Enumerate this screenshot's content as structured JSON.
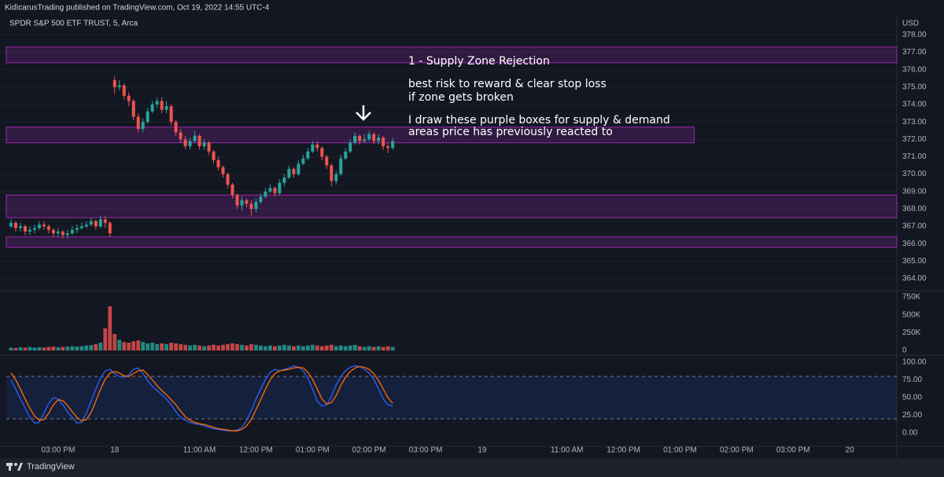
{
  "header": {
    "publish": "KidIcarusTrading published on TradingView.com, Oct 19, 2022 14:55 UTC-4",
    "symbol": "SPDR S&P 500 ETF TRUST, 5, Arca",
    "currency": "USD"
  },
  "annotations": [
    "1 - Supply Zone Rejection",
    "best risk to reward & clear stop loss",
    "if zone gets broken",
    "I draw these purple boxes for supply & demand",
    "areas price has previously reacted to"
  ],
  "footer": {
    "brand": "TradingView"
  },
  "chart_data": [
    {
      "type": "candlestick",
      "open": [
        367.0,
        367.2,
        366.9,
        367.0,
        366.7,
        366.8,
        366.9,
        367.1,
        367.0,
        366.8,
        366.6,
        366.7,
        366.5,
        366.6,
        366.8,
        366.9,
        367.0,
        367.1,
        367.3,
        367.0,
        367.4,
        367.2,
        375.4,
        375.0,
        375.1,
        374.5,
        374.2,
        373.3,
        372.6,
        373.0,
        373.6,
        374.0,
        374.2,
        373.7,
        373.9,
        373.0,
        372.4,
        372.0,
        371.6,
        371.9,
        372.2,
        371.6,
        371.8,
        371.3,
        370.8,
        370.4,
        370.0,
        369.4,
        368.8,
        368.2,
        368.5,
        368.3,
        368.0,
        368.4,
        368.7,
        369.0,
        369.2,
        368.9,
        369.5,
        369.8,
        370.3,
        370.0,
        370.6,
        370.9,
        371.3,
        371.7,
        371.5,
        371.0,
        370.5,
        369.6,
        370.0,
        370.9,
        371.3,
        371.8,
        372.2,
        371.9,
        372.0,
        372.3,
        371.9,
        372.1,
        371.6,
        371.5
      ],
      "high": [
        367.4,
        367.3,
        367.2,
        367.1,
        367.0,
        367.1,
        367.3,
        367.3,
        367.1,
        366.9,
        366.9,
        366.8,
        366.8,
        367.0,
        367.1,
        367.2,
        367.3,
        367.5,
        367.4,
        367.6,
        367.6,
        367.3,
        375.6,
        375.4,
        375.2,
        374.7,
        374.3,
        373.5,
        373.2,
        373.8,
        374.2,
        374.4,
        374.4,
        374.2,
        374.0,
        373.1,
        372.6,
        372.2,
        372.1,
        372.5,
        372.3,
        372.0,
        371.9,
        371.4,
        371.0,
        370.5,
        370.1,
        369.5,
        368.9,
        368.7,
        368.6,
        368.5,
        368.6,
        368.9,
        369.2,
        369.4,
        369.3,
        369.7,
        370.0,
        370.5,
        370.4,
        370.8,
        371.1,
        371.5,
        371.9,
        371.9,
        371.6,
        371.1,
        370.6,
        370.2,
        371.1,
        371.5,
        372.0,
        372.4,
        372.3,
        372.3,
        372.5,
        372.4,
        372.3,
        372.2,
        371.8,
        372.1
      ],
      "low": [
        366.9,
        366.7,
        366.7,
        366.5,
        366.5,
        366.6,
        366.8,
        366.8,
        366.6,
        366.4,
        366.4,
        366.3,
        366.3,
        366.5,
        366.6,
        366.8,
        366.9,
        367.0,
        366.8,
        366.9,
        366.9,
        366.4,
        374.6,
        374.8,
        374.3,
        373.9,
        373.1,
        372.4,
        372.4,
        372.9,
        373.5,
        373.8,
        373.5,
        373.5,
        372.8,
        372.2,
        371.8,
        371.4,
        371.4,
        371.8,
        371.4,
        371.4,
        371.1,
        370.6,
        370.2,
        369.8,
        369.2,
        368.6,
        368.0,
        367.9,
        368.1,
        367.6,
        367.8,
        368.3,
        368.6,
        368.9,
        368.7,
        368.8,
        369.3,
        369.7,
        369.8,
        369.9,
        370.5,
        370.8,
        371.2,
        371.3,
        370.8,
        370.3,
        369.3,
        369.4,
        369.9,
        370.8,
        371.2,
        371.7,
        371.7,
        371.8,
        371.9,
        371.7,
        371.7,
        371.4,
        371.2,
        371.4
      ],
      "close": [
        367.2,
        366.9,
        367.0,
        366.7,
        366.8,
        366.9,
        367.1,
        367.0,
        366.8,
        366.6,
        366.7,
        366.5,
        366.6,
        366.8,
        366.9,
        367.0,
        367.1,
        367.3,
        367.0,
        367.4,
        367.2,
        366.6,
        375.0,
        375.1,
        374.5,
        374.2,
        373.3,
        372.6,
        373.0,
        373.6,
        374.0,
        374.2,
        373.7,
        373.9,
        373.0,
        372.4,
        372.0,
        371.6,
        371.9,
        372.2,
        371.6,
        371.8,
        371.3,
        370.8,
        370.4,
        370.0,
        369.4,
        368.8,
        368.2,
        368.5,
        368.3,
        368.0,
        368.4,
        368.7,
        369.0,
        369.2,
        368.9,
        369.5,
        369.8,
        370.3,
        370.0,
        370.6,
        370.9,
        371.3,
        371.7,
        371.5,
        371.0,
        370.5,
        369.6,
        370.0,
        370.9,
        371.3,
        371.8,
        372.2,
        371.9,
        372.0,
        372.3,
        371.9,
        372.1,
        371.6,
        371.5,
        371.9
      ],
      "up_color": "#26a69a",
      "down_color": "#ef5350",
      "xlim": [
        -1,
        188
      ],
      "ylim": [
        363.3,
        379.1
      ],
      "yticks": [
        {
          "value": 364,
          "label": "364.00"
        },
        {
          "value": 365,
          "label": "365.00"
        },
        {
          "value": 366,
          "label": "366.00"
        },
        {
          "value": 367,
          "label": "367.00"
        },
        {
          "value": 368,
          "label": "368.00"
        },
        {
          "value": 369,
          "label": "369.00"
        },
        {
          "value": 370,
          "label": "370.00"
        },
        {
          "value": 371,
          "label": "371.00"
        },
        {
          "value": 372,
          "label": "372.00"
        },
        {
          "value": 373,
          "label": "373.00"
        },
        {
          "value": 374,
          "label": "374.00"
        },
        {
          "value": 375,
          "label": "375.00"
        },
        {
          "value": 376,
          "label": "376.00"
        },
        {
          "value": 377,
          "label": "377.00"
        },
        {
          "value": 378,
          "label": "378.00"
        }
      ],
      "grid": true,
      "zone_color": "#9c27b0",
      "zones": [
        {
          "low": 376.4,
          "high": 377.3
        },
        {
          "low": 371.8,
          "high": 372.7,
          "end": 145
        },
        {
          "low": 367.5,
          "high": 368.8
        },
        {
          "low": 365.8,
          "high": 366.4
        }
      ]
    },
    {
      "type": "bar",
      "values": [
        40000,
        35000,
        45000,
        40000,
        50000,
        40000,
        45000,
        40000,
        50000,
        55000,
        45000,
        50000,
        55000,
        60000,
        55000,
        60000,
        70000,
        75000,
        90000,
        110000,
        310000,
        620000,
        230000,
        150000,
        120000,
        110000,
        130000,
        140000,
        120000,
        100000,
        110000,
        90000,
        100000,
        90000,
        110000,
        100000,
        90000,
        80000,
        70000,
        80000,
        70000,
        60000,
        70000,
        80000,
        70000,
        80000,
        90000,
        100000,
        90000,
        80000,
        70000,
        90000,
        80000,
        70000,
        60000,
        70000,
        60000,
        70000,
        80000,
        70000,
        60000,
        70000,
        60000,
        70000,
        80000,
        70000,
        60000,
        70000,
        80000,
        60000,
        70000,
        60000,
        70000,
        80000,
        60000,
        50000,
        60000,
        50000,
        60000,
        50000,
        60000,
        50000
      ],
      "up_color": "#26a69a",
      "down_color": "#ef5350",
      "xlim": [
        -1,
        188
      ],
      "ylim": [
        -66000,
        816000
      ],
      "yticks": [
        {
          "value": 750000,
          "label": "750K"
        },
        {
          "value": 500000,
          "label": "500K"
        },
        {
          "value": 250000,
          "label": "250K"
        },
        0
      ]
    },
    {
      "type": "line",
      "series": [
        {
          "color": "#2962ff",
          "values": [
            75,
            62,
            48,
            35,
            22,
            14,
            15,
            28,
            42,
            50,
            48,
            40,
            30,
            22,
            14,
            15,
            28,
            45,
            62,
            78,
            88,
            90,
            84,
            80,
            79,
            82,
            90,
            92,
            84,
            74,
            66,
            60,
            54,
            48,
            40,
            30,
            22,
            18,
            15,
            13,
            12,
            10,
            8,
            6,
            5,
            4,
            3,
            3,
            4,
            8,
            18,
            32,
            48,
            62,
            76,
            86,
            90,
            88,
            90,
            92,
            95,
            93,
            88,
            78,
            62,
            45,
            38,
            40,
            52,
            68,
            80,
            88,
            93,
            95,
            94,
            90,
            85,
            76,
            62,
            48,
            40,
            38
          ]
        },
        {
          "color": "#ff6d00",
          "values": [
            85,
            75,
            62,
            48,
            35,
            24,
            18,
            19,
            28,
            40,
            47,
            46,
            39,
            30,
            22,
            17,
            19,
            29,
            45,
            62,
            76,
            85,
            87,
            85,
            81,
            80,
            84,
            88,
            89,
            83,
            75,
            67,
            60,
            54,
            47,
            40,
            31,
            23,
            18,
            15,
            13,
            12,
            10,
            8,
            6,
            5,
            4,
            3,
            3,
            5,
            10,
            19,
            33,
            47,
            62,
            75,
            84,
            88,
            89,
            90,
            92,
            93,
            92,
            86,
            76,
            62,
            48,
            41,
            43,
            53,
            67,
            79,
            87,
            92,
            94,
            93,
            90,
            84,
            74,
            62,
            50,
            42
          ]
        }
      ],
      "xlim": [
        -1,
        188
      ],
      "ylim": [
        -19,
        109
      ],
      "yticks": [
        {
          "value": 100,
          "label": "100.00"
        },
        {
          "value": 75,
          "label": "75.00"
        },
        {
          "value": 50,
          "label": "50.00"
        },
        {
          "value": 25,
          "label": "25.00"
        },
        {
          "value": 0,
          "label": "0.00"
        }
      ],
      "bands": [
        20,
        80
      ],
      "band_color": "#2962ff",
      "xticks": [
        {
          "value": 10,
          "label": "03:00 PM"
        },
        {
          "value": 22,
          "label": "18"
        },
        {
          "value": 40,
          "label": "11:00 AM"
        },
        {
          "value": 52,
          "label": "12:00 PM"
        },
        {
          "value": 64,
          "label": "01:00 PM"
        },
        {
          "value": 76,
          "label": "02:00 PM"
        },
        {
          "value": 88,
          "label": "03:00 PM"
        },
        {
          "value": 100,
          "label": "19"
        },
        {
          "value": 118,
          "label": "11:00 AM"
        },
        {
          "value": 130,
          "label": "12:00 PM"
        },
        {
          "value": 142,
          "label": "01:00 PM"
        },
        {
          "value": 154,
          "label": "02:00 PM"
        },
        {
          "value": 166,
          "label": "03:00 PM"
        },
        {
          "value": 178,
          "label": "20"
        }
      ]
    }
  ]
}
